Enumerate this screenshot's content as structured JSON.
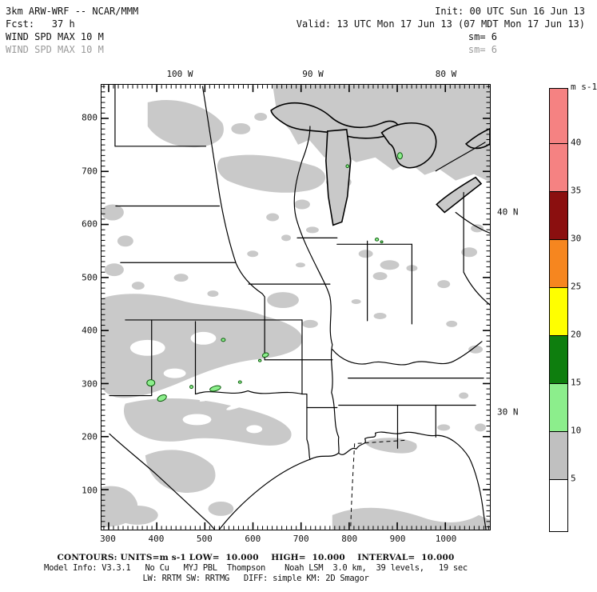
{
  "header": {
    "model_title": "3km ARW-WRF -- NCAR/MMM",
    "init_time": "Init: 00 UTC Sun 16 Jun 13",
    "fcst_hour": "Fcst:   37 h",
    "valid_time": "Valid: 13 UTC Mon 17 Jun 13 (07 MDT Mon 17 Jun 13)",
    "field_line1": "WIND SPD MAX 10 M",
    "field_line2": "WIND SPD MAX 10 M",
    "sm_line1": "sm= 6",
    "sm_line2": "sm= 6"
  },
  "map": {
    "top_axis_labels": [
      "100 W",
      "90 W",
      "80 W"
    ],
    "right_axis_labels": [
      "40 N",
      "30 N"
    ],
    "left_axis_labels": [
      "800",
      "700",
      "600",
      "500",
      "400",
      "300",
      "200",
      "100"
    ],
    "bottom_axis_labels": [
      "300",
      "400",
      "500",
      "600",
      "700",
      "800",
      "900",
      "1000"
    ]
  },
  "colorbar": {
    "units_label": "m s-1",
    "tick_labels": [
      "40",
      "35",
      "30",
      "25",
      "20",
      "15",
      "10",
      "5"
    ],
    "tick_values": [
      40,
      35,
      30,
      25,
      20,
      15,
      10,
      5
    ],
    "segment_colors": [
      "#F58282",
      "#F58282",
      "#8B0F0F",
      "#F6861F",
      "#FFFF00",
      "#0E7E0E",
      "#8CEE8C",
      "#C0C0C0",
      "#FFFFFF"
    ]
  },
  "footer": {
    "contours_line": "CONTOURS: UNITS=m s-1 LOW=  10.000    HIGH=  10.000    INTERVAL=  10.000",
    "model_info_line": "Model Info: V3.3.1   No Cu   MYJ PBL  Thompson    Noah LSM  3.0 km,  39 levels,   19 sec",
    "physics_line": "LW: RRTM SW: RRTMG   DIFF: simple KM: 2D Smagor"
  },
  "colors": {
    "shade_gray": "#C9C9C9",
    "outline_black": "#000000",
    "header_gray": "#9A9A9A",
    "green_spot_fill": "#8CEE8C",
    "green_spot_stroke": "#0A5A0A"
  }
}
